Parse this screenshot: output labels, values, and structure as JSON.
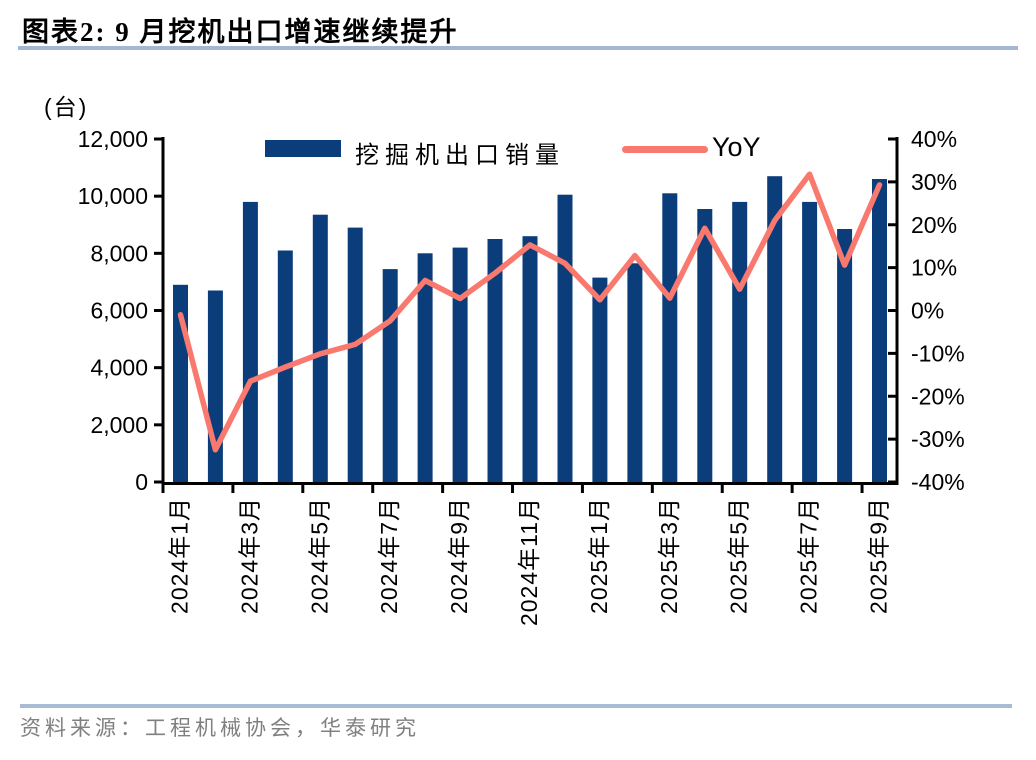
{
  "header": {
    "title": "图表2:  9 月挖机出口增速继续提升"
  },
  "chart_data": {
    "type": "bar",
    "subtype": "bar+line dual-axis combo",
    "unit_label": "(台)",
    "categories": [
      "2024年1月",
      "2024年2月",
      "2024年3月",
      "2024年4月",
      "2024年5月",
      "2024年6月",
      "2024年7月",
      "2024年8月",
      "2024年9月",
      "2024年10月",
      "2024年11月",
      "2024年12月",
      "2025年1月",
      "2025年2月",
      "2025年3月",
      "2025年4月",
      "2025年5月",
      "2025年6月",
      "2025年7月",
      "2025年8月",
      "2025年9月"
    ],
    "x_axis": {
      "label_interval": 2,
      "visible_labels": [
        "2024年1月",
        "2024年3月",
        "2024年5月",
        "2024年7月",
        "2024年9月",
        "2024年11月",
        "2025年1月",
        "2025年3月",
        "2025年5月",
        "2025年7月",
        "2025年9月"
      ]
    },
    "series": [
      {
        "name": "挖掘机出口销量",
        "type": "bar",
        "axis": "left",
        "color": "#0B3D7B",
        "values": [
          6900,
          6700,
          9800,
          8100,
          9350,
          8900,
          7450,
          8000,
          8200,
          8500,
          8600,
          10050,
          7150,
          7650,
          10100,
          9550,
          9800,
          10700,
          9800,
          8850,
          10600
        ]
      },
      {
        "name": "YoY",
        "type": "line",
        "axis": "right",
        "color": "#F9796F",
        "values_pct": [
          -1.0,
          -32.5,
          -16.5,
          -13.2,
          -10.1,
          -7.9,
          -2.4,
          7.0,
          2.8,
          8.7,
          15.3,
          11.0,
          2.5,
          12.8,
          2.9,
          19.2,
          5.0,
          21.0,
          31.8,
          10.6,
          29.3
        ]
      }
    ],
    "left_axis": {
      "min": 0,
      "max": 12000,
      "step": 2000,
      "tick_labels": [
        "0",
        "2,000",
        "4,000",
        "6,000",
        "8,000",
        "10,000",
        "12,000"
      ]
    },
    "right_axis": {
      "min": -40,
      "max": 40,
      "step": 10,
      "tick_labels": [
        "-40%",
        "-30%",
        "-20%",
        "-10%",
        "0%",
        "10%",
        "20%",
        "30%",
        "40%"
      ]
    },
    "legend": [
      {
        "label": "挖掘机出口销量",
        "swatch": "bar"
      },
      {
        "label": "YoY",
        "swatch": "line"
      }
    ],
    "legend_position": "top-inside",
    "grid": "off"
  },
  "footer": {
    "source": "资料来源：工程机械协会，华泰研究"
  },
  "colors": {
    "bar": "#0B3D7B",
    "line": "#F9796F",
    "title_underline": "#A3B6D4",
    "footer_divider": "#A9BAD3",
    "footer_text": "#808080",
    "axis": "#000000"
  }
}
